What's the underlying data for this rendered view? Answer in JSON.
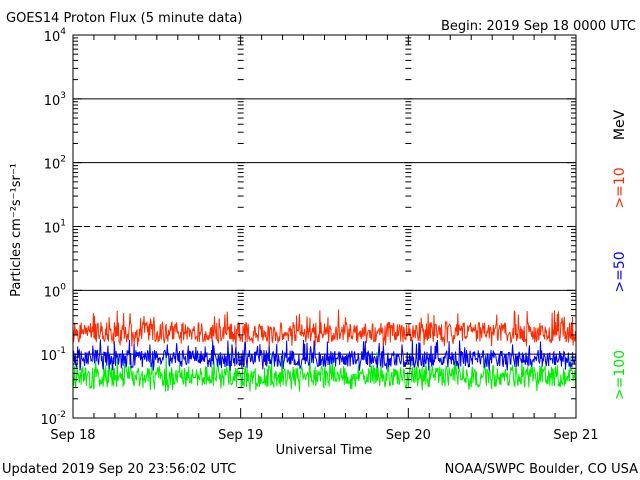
{
  "chart_data": {
    "type": "line",
    "title": "GOES14 Proton Flux (5 minute data)",
    "begin_label": "Begin: 2019 Sep 18 0000 UTC",
    "xlabel": "Universal Time",
    "ylabel": "Particles cm⁻²s⁻¹sr⁻¹",
    "unit_label": "MeV",
    "y_scale": "log",
    "ylim": [
      0.01,
      10000
    ],
    "xlim": [
      "2019-09-18 00:00",
      "2019-09-21 00:00"
    ],
    "x_tick_labels": [
      "Sep 18",
      "Sep 19",
      "Sep 20",
      "Sep 21"
    ],
    "y_ticks": [
      {
        "base": "10",
        "exp": "4"
      },
      {
        "base": "10",
        "exp": "3"
      },
      {
        "base": "10",
        "exp": "2"
      },
      {
        "base": "10",
        "exp": "1"
      },
      {
        "base": "10",
        "exp": "0"
      },
      {
        "base": "10",
        "exp": "-1"
      },
      {
        "base": "10",
        "exp": "-2"
      }
    ],
    "reference_lines": [
      {
        "y": 1000,
        "style": "solid"
      },
      {
        "y": 100,
        "style": "solid"
      },
      {
        "y": 10,
        "style": "dashed"
      },
      {
        "y": 1,
        "style": "solid"
      },
      {
        "y": 0.1,
        "style": "solid"
      }
    ],
    "series": [
      {
        "name": ">=10",
        "color": "#ff2a00",
        "typical_flux": 0.22,
        "low_flux": 0.13,
        "high_flux": 0.5
      },
      {
        "name": ">=50",
        "color": "#0000ff",
        "typical_flux": 0.085,
        "low_flux": 0.055,
        "high_flux": 0.17
      },
      {
        "name": ">=100",
        "color": "#00ee00",
        "typical_flux": 0.045,
        "low_flux": 0.026,
        "high_flux": 0.11
      }
    ]
  },
  "footer": {
    "updated": "Updated 2019 Sep 20 23:56:02 UTC",
    "source": "NOAA/SWPC Boulder, CO USA"
  }
}
